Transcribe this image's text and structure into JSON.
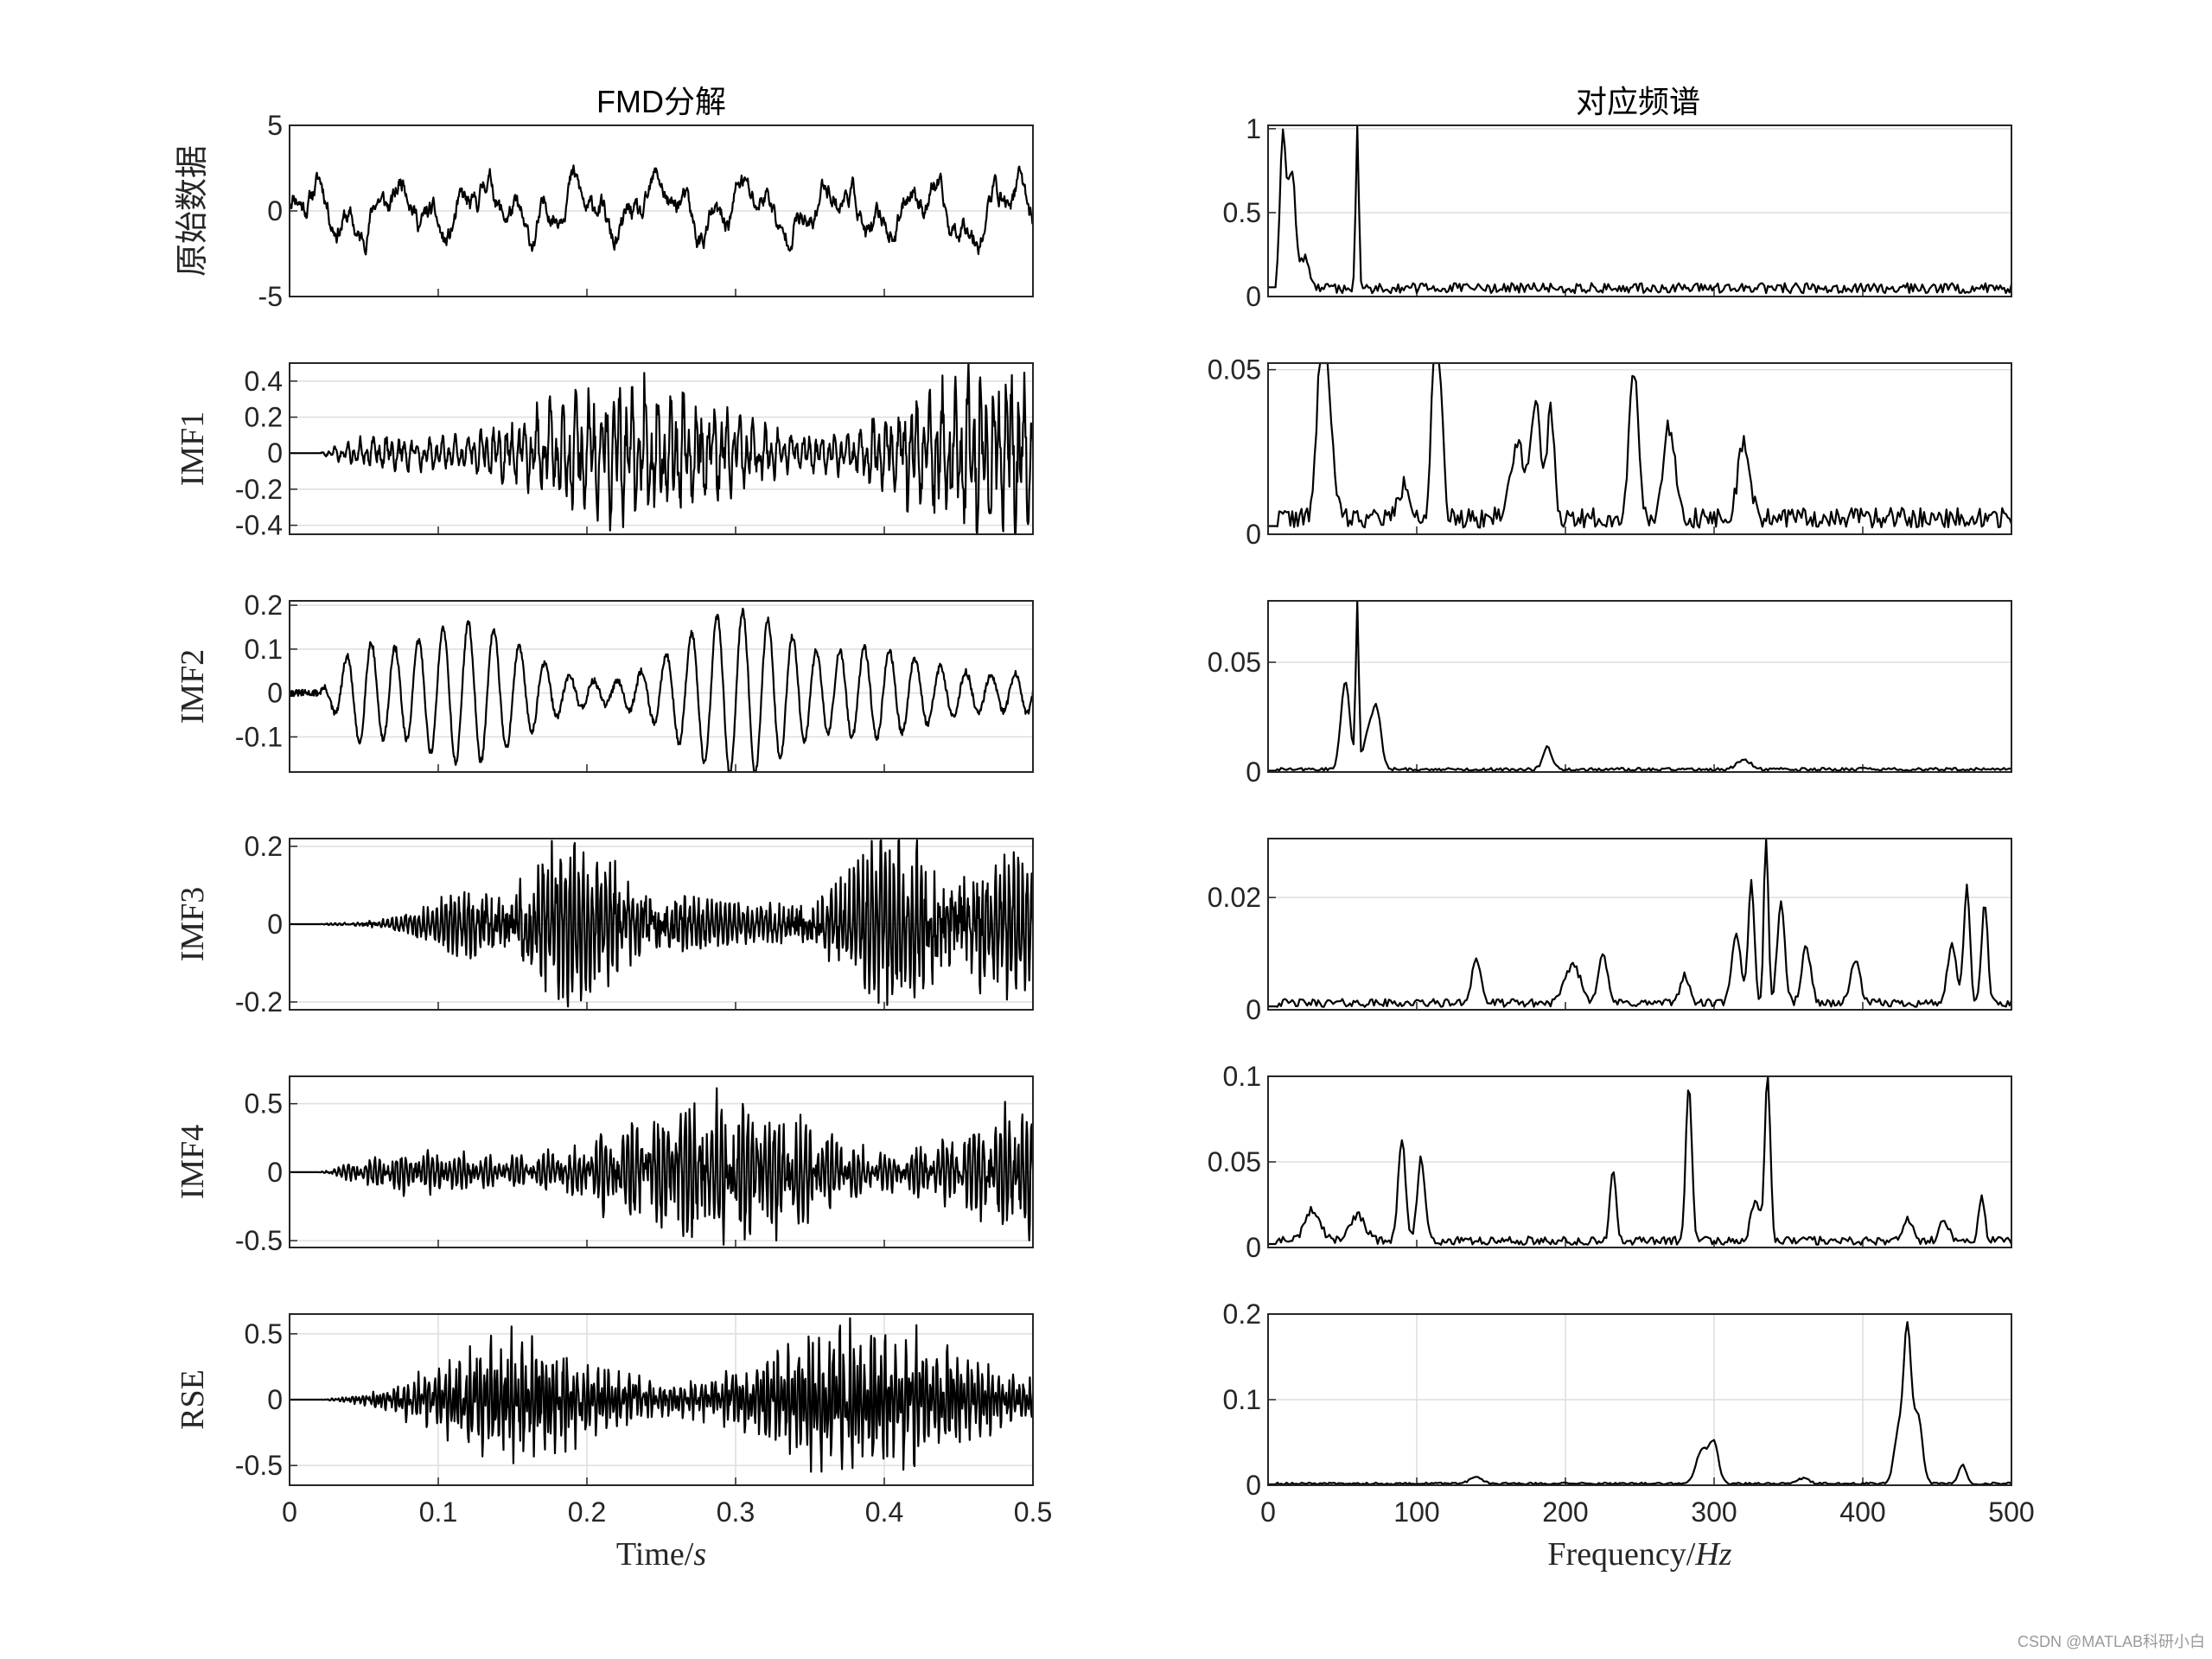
{
  "figure": {
    "left_title": "FMD分解",
    "right_title": "对应频谱",
    "watermark": "CSDN @MATLAB科研小白"
  },
  "chart_data": [
    {
      "type": "line",
      "panel": "time",
      "ylabel": "原始数据",
      "ylim": [
        -5,
        5
      ],
      "yticks": [
        -5,
        0,
        5
      ],
      "ytick_labels": [
        "-5",
        "0",
        "5"
      ],
      "xlim": [
        0,
        0.5
      ],
      "signal": {
        "kind": "mix",
        "amp": 1.2,
        "f1": 17,
        "f2": 53,
        "noise": 0.55,
        "seed": 11,
        "ramp": 0
      }
    },
    {
      "type": "line",
      "panel": "time",
      "ylabel": "IMF1",
      "ylim": [
        -0.45,
        0.5
      ],
      "yticks": [
        -0.4,
        -0.2,
        0,
        0.2,
        0.4
      ],
      "ytick_labels": [
        "-0.4",
        "-0.2",
        "0",
        "0.2",
        "0.4"
      ],
      "xlim": [
        0,
        0.5
      ],
      "signal": {
        "kind": "band",
        "amp": 0.16,
        "f1": 235,
        "f2": 110,
        "noise": 0.35,
        "seed": 21,
        "ramp": 0.07
      }
    },
    {
      "type": "line",
      "panel": "time",
      "ylabel": "IMF2",
      "ylim": [
        -0.18,
        0.21
      ],
      "yticks": [
        -0.1,
        0,
        0.1,
        0.2
      ],
      "ytick_labels": [
        "-0.1",
        "0",
        "0.1",
        "0.2"
      ],
      "xlim": [
        0,
        0.5
      ],
      "signal": {
        "kind": "tone",
        "amp": 0.1,
        "f1": 60,
        "f2": 53,
        "noise": 0.15,
        "seed": 31,
        "ramp": 0.03
      }
    },
    {
      "type": "line",
      "panel": "time",
      "ylabel": "IMF3",
      "ylim": [
        -0.22,
        0.22
      ],
      "yticks": [
        -0.2,
        0,
        0.2
      ],
      "ytick_labels": [
        "-0.2",
        "0",
        "0.2"
      ],
      "xlim": [
        0,
        0.5
      ],
      "signal": {
        "kind": "band",
        "amp": 0.07,
        "f1": 335,
        "f2": 325,
        "noise": 0.5,
        "seed": 41,
        "ramp": 0.12
      }
    },
    {
      "type": "line",
      "panel": "time",
      "ylabel": "IMF4",
      "ylim": [
        -0.55,
        0.7
      ],
      "yticks": [
        -0.5,
        0,
        0.5
      ],
      "ytick_labels": [
        "-0.5",
        "0",
        "0.5"
      ],
      "xlim": [
        0,
        0.5
      ],
      "signal": {
        "kind": "band",
        "amp": 0.2,
        "f1": 335,
        "f2": 283,
        "noise": 0.4,
        "seed": 51,
        "ramp": 0.15
      }
    },
    {
      "type": "line",
      "panel": "time",
      "ylabel": "RSE",
      "ylim": [
        -0.65,
        0.65
      ],
      "yticks": [
        -0.5,
        0,
        0.5
      ],
      "ytick_labels": [
        "-0.5",
        "0",
        "0.5"
      ],
      "xlim": [
        0,
        0.5
      ],
      "xticks": [
        0,
        0.1,
        0.2,
        0.3,
        0.4,
        0.5
      ],
      "xtick_labels": [
        "0",
        "0.1",
        "0.2",
        "0.3",
        "0.4",
        "0.5"
      ],
      "xlabel": "Time/s",
      "grid_x": true,
      "signal": {
        "kind": "band",
        "amp": 0.2,
        "f1": 430,
        "f2": 290,
        "noise": 0.35,
        "seed": 61,
        "ramp": 0.12
      }
    },
    {
      "type": "line",
      "panel": "freq",
      "ylim": [
        0,
        1.02
      ],
      "yticks": [
        0,
        0.5,
        1
      ],
      "ytick_labels": [
        "0",
        "0.5",
        "1"
      ],
      "xlim": [
        0,
        500
      ],
      "peaks": [
        [
          10,
          0.9,
          2
        ],
        [
          16,
          0.7,
          2.5
        ],
        [
          25,
          0.18,
          3
        ],
        [
          60,
          1.0,
          1
        ]
      ],
      "floor": 0.05,
      "seed": 12
    },
    {
      "type": "line",
      "panel": "freq",
      "ylim": [
        0,
        0.052
      ],
      "yticks": [
        0,
        0.05
      ],
      "ytick_labels": [
        "0",
        "0.05"
      ],
      "xlim": [
        0,
        500
      ],
      "peaks": [
        [
          36,
          0.046,
          3
        ],
        [
          40,
          0.028,
          4
        ],
        [
          112,
          0.05,
          2
        ],
        [
          115,
          0.042,
          2.5
        ],
        [
          180,
          0.036,
          3
        ],
        [
          190,
          0.032,
          2.5
        ],
        [
          246,
          0.046,
          3
        ],
        [
          270,
          0.028,
          4
        ],
        [
          320,
          0.022,
          4
        ],
        [
          92,
          0.01,
          4
        ],
        [
          168,
          0.022,
          5
        ]
      ],
      "floor": 0.005,
      "seed": 22
    },
    {
      "type": "line",
      "panel": "freq",
      "ylim": [
        0,
        0.078
      ],
      "yticks": [
        0,
        0.05
      ],
      "ytick_labels": [
        "0",
        "0.05"
      ],
      "xlim": [
        0,
        500
      ],
      "peaks": [
        [
          52,
          0.04,
          3
        ],
        [
          60,
          0.078,
          1
        ],
        [
          73,
          0.027,
          3
        ],
        [
          67,
          0.015,
          3
        ],
        [
          188,
          0.01,
          3
        ],
        [
          320,
          0.004,
          5
        ]
      ],
      "floor": 0.0012,
      "seed": 32
    },
    {
      "type": "line",
      "panel": "freq",
      "ylim": [
        0,
        0.0305
      ],
      "yticks": [
        0,
        0.02
      ],
      "ytick_labels": [
        "0",
        "0.02"
      ],
      "xlim": [
        0,
        500
      ],
      "peaks": [
        [
          325,
          0.022,
          2
        ],
        [
          335,
          0.03,
          1.5
        ],
        [
          345,
          0.018,
          2.5
        ],
        [
          315,
          0.012,
          3
        ],
        [
          362,
          0.01,
          3
        ],
        [
          395,
          0.008,
          3
        ],
        [
          470,
          0.021,
          2
        ],
        [
          482,
          0.018,
          2
        ],
        [
          460,
          0.01,
          3
        ],
        [
          140,
          0.008,
          3
        ],
        [
          205,
          0.007,
          5
        ],
        [
          225,
          0.009,
          3
        ],
        [
          280,
          0.005,
          3
        ]
      ],
      "floor": 0.0012,
      "seed": 42
    },
    {
      "type": "line",
      "panel": "freq",
      "ylim": [
        0,
        0.1
      ],
      "yticks": [
        0,
        0.05,
        0.1
      ],
      "ytick_labels": [
        "0",
        "0.05",
        "0.1"
      ],
      "xlim": [
        0,
        500
      ],
      "peaks": [
        [
          90,
          0.058,
          2.5
        ],
        [
          103,
          0.048,
          2.5
        ],
        [
          232,
          0.042,
          2
        ],
        [
          283,
          0.093,
          2
        ],
        [
          336,
          0.1,
          1.8
        ],
        [
          328,
          0.025,
          3
        ],
        [
          30,
          0.018,
          5
        ],
        [
          60,
          0.015,
          5
        ],
        [
          430,
          0.014,
          3
        ],
        [
          455,
          0.012,
          3
        ],
        [
          480,
          0.025,
          2
        ]
      ],
      "floor": 0.004,
      "seed": 52
    },
    {
      "type": "line",
      "panel": "freq",
      "ylim": [
        0,
        0.2
      ],
      "yticks": [
        0,
        0.1,
        0.2
      ],
      "ytick_labels": [
        "0",
        "0.1",
        "0.2"
      ],
      "xlim": [
        0,
        500
      ],
      "xticks": [
        0,
        100,
        200,
        300,
        400,
        500
      ],
      "xtick_labels": [
        "0",
        "100",
        "200",
        "300",
        "400",
        "500"
      ],
      "xlabel": "Frequency/Hz",
      "grid_x": true,
      "peaks": [
        [
          430,
          0.175,
          2.5
        ],
        [
          437,
          0.08,
          3
        ],
        [
          424,
          0.06,
          3
        ],
        [
          292,
          0.04,
          4
        ],
        [
          300,
          0.045,
          3
        ],
        [
          467,
          0.022,
          2.5
        ],
        [
          140,
          0.008,
          4
        ],
        [
          360,
          0.006,
          4
        ]
      ],
      "floor": 0.002,
      "seed": 62
    }
  ]
}
